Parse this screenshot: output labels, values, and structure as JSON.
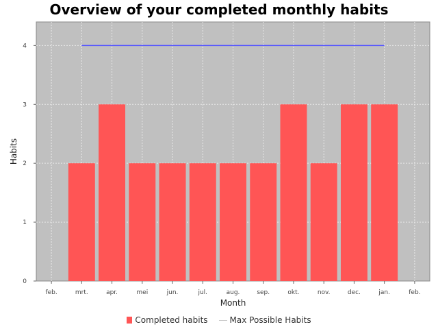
{
  "chart_data": {
    "type": "bar",
    "title": "Overview of your completed monthly habits",
    "xlabel": "Month",
    "ylabel": "Habits",
    "categories": [
      "feb.",
      "mrt.",
      "apr.",
      "mei",
      "jun.",
      "jul.",
      "aug.",
      "sep.",
      "okt.",
      "nov.",
      "dec.",
      "jan.",
      "feb."
    ],
    "ylim": [
      0,
      4.4
    ],
    "yticks": [
      "0",
      "1",
      "2",
      "3",
      "4"
    ],
    "grid": true,
    "series": [
      {
        "name": "Completed habits",
        "type": "bar",
        "color": "#ff5555",
        "values": [
          null,
          2,
          3,
          2,
          2,
          2,
          2,
          2,
          3,
          2,
          3,
          3,
          null
        ]
      },
      {
        "name": "Max Possible Habits",
        "type": "line",
        "color": "#5555ff",
        "values": [
          null,
          4,
          4,
          4,
          4,
          4,
          4,
          4,
          4,
          4,
          4,
          4,
          null
        ]
      }
    ],
    "legend": "bottom"
  },
  "colors": {
    "plot_background": "#c0c0c0",
    "grid": "#e8e8e8"
  }
}
